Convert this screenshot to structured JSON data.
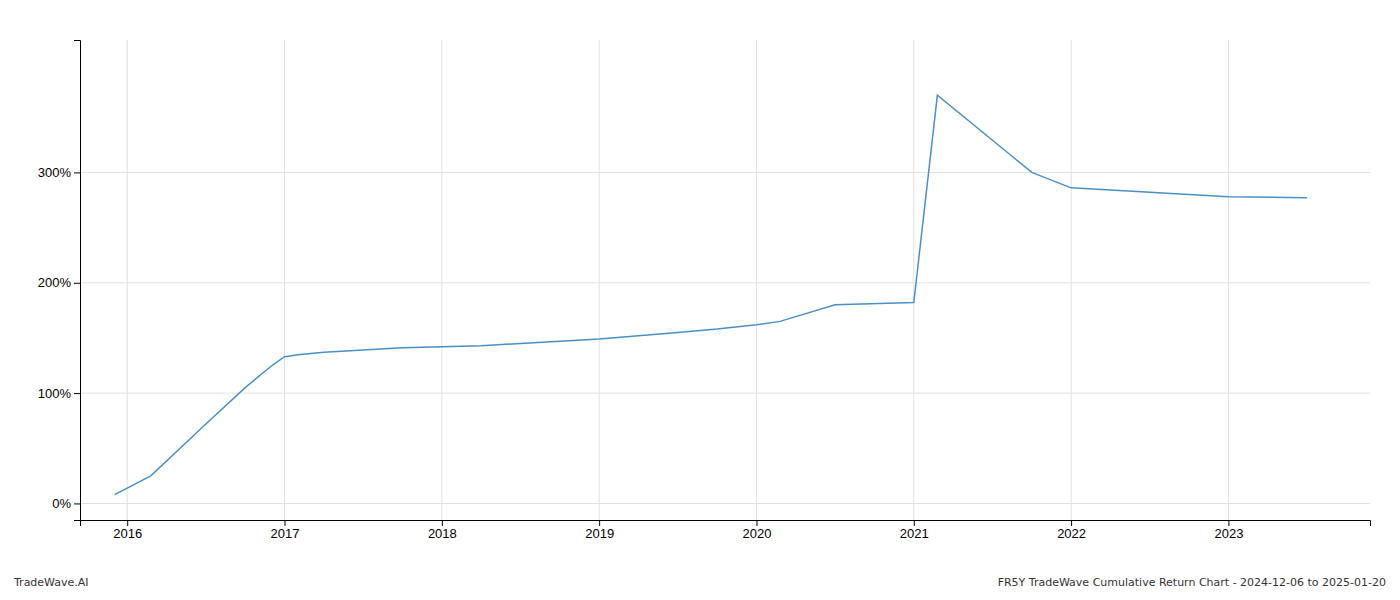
{
  "chart_data": {
    "type": "line",
    "x": [
      2015.92,
      2016.15,
      2016.5,
      2016.75,
      2016.92,
      2017.0,
      2017.1,
      2017.25,
      2017.5,
      2017.75,
      2018.0,
      2018.25,
      2018.5,
      2018.75,
      2019.0,
      2019.25,
      2019.5,
      2019.75,
      2020.0,
      2020.15,
      2020.5,
      2021.0,
      2021.15,
      2021.75,
      2022.0,
      2022.5,
      2022.75,
      2023.0,
      2023.5
    ],
    "values": [
      8,
      25,
      72,
      105,
      125,
      133,
      135,
      137,
      139,
      141,
      142,
      143,
      145,
      147,
      149,
      152,
      155,
      158,
      162,
      165,
      180,
      182,
      370,
      300,
      286,
      282,
      280,
      278,
      277
    ],
    "color": "#4a90c4",
    "xlim": [
      2015.7,
      2023.9
    ],
    "ylim": [
      -15,
      420
    ],
    "xticks": [
      2016,
      2017,
      2018,
      2019,
      2020,
      2021,
      2022,
      2023
    ],
    "yticks": [
      {
        "value": 0,
        "label": "0%"
      },
      {
        "value": 100,
        "label": "100%"
      },
      {
        "value": 200,
        "label": "200%"
      },
      {
        "value": 300,
        "label": "300%"
      }
    ],
    "grid": true,
    "annotations": [
      "TradeWave.AI",
      "FR5Y TradeWave Cumulative Return Chart - 2024-12-06 to 2025-01-20"
    ]
  }
}
